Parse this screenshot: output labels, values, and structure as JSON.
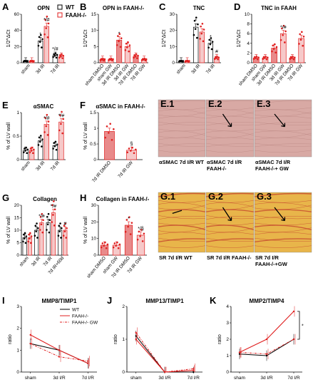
{
  "colors": {
    "wt": "#000000",
    "faah": "#e02020",
    "wt_bar": "#ffffff",
    "faah_bar": "#f6c9c9",
    "faah_bar_dark": "#e88a8a"
  },
  "legend": {
    "wt": "WT",
    "faah": "FAAH-/-"
  },
  "bars": [
    {
      "id": "A",
      "title": "OPN",
      "ylabel": "1/2^ΔCt",
      "ylim": [
        0,
        60
      ],
      "yticks": [
        0,
        20,
        40,
        60
      ],
      "categories": [
        "sham",
        "3d IR",
        "7d IR"
      ],
      "values": [
        2,
        27,
        9
      ],
      "values_faah": [
        2,
        45,
        8
      ],
      "sig": [
        "",
        "*",
        "*/#"
      ],
      "sig_faah": [
        "",
        "*/#",
        ""
      ]
    },
    {
      "id": "B",
      "title": "OPN in FAAH-/-",
      "ylabel": "1/2^ΔCt",
      "ylim": [
        0,
        15
      ],
      "yticks": [
        0,
        5,
        10,
        15
      ],
      "categories": [
        "sham DMSO",
        "sham GW",
        "3d IR DMSO",
        "3d IR GW",
        "7d IR DMSO",
        "7d IR GW"
      ],
      "values": [
        1,
        1,
        7,
        5,
        2,
        1
      ],
      "sig": [
        "",
        "",
        "*",
        "",
        "",
        ""
      ]
    },
    {
      "id": "C",
      "title": "TNC",
      "ylabel": "1/2^ΔCt",
      "ylim": [
        0,
        30
      ],
      "yticks": [
        0,
        10,
        20,
        30
      ],
      "categories": [
        "sham",
        "3d IR",
        "7d IR"
      ],
      "values": [
        1,
        22,
        12
      ],
      "values_faah": [
        1,
        19,
        3
      ],
      "sig": [
        "",
        "*",
        "*"
      ],
      "sig_faah": [
        "",
        "",
        "#"
      ]
    },
    {
      "id": "D",
      "title": "TNC in FAAH",
      "ylabel": "1/2^ΔCt",
      "ylim": [
        0,
        10
      ],
      "yticks": [
        0,
        2,
        4,
        6,
        8,
        10
      ],
      "categories": [
        "sham DMSO",
        "sham GW",
        "3d IR DMSO",
        "3d IR GW",
        "7d IR DMSO",
        "7d IR GW"
      ],
      "values": [
        1,
        1,
        3,
        6,
        1,
        5
      ],
      "sig": [
        "",
        "",
        "",
        "*/#",
        "",
        ""
      ]
    },
    {
      "id": "E",
      "title": "αSMAC",
      "ylabel": "% of LV wall",
      "ylim": [
        0,
        1
      ],
      "yticks": [
        0,
        0.5,
        1.0
      ],
      "categories": [
        "sham",
        "3d IR",
        "7d IR"
      ],
      "values": [
        0.2,
        0.4,
        0.3
      ],
      "values_faah": [
        0.2,
        0.75,
        0.8
      ],
      "sig": [
        "",
        "",
        ""
      ],
      "sig_faah": [
        "",
        "*/#",
        "*/#"
      ]
    },
    {
      "id": "F",
      "title": "αSMAC in FAAH-/-",
      "ylabel": "% of LV wall",
      "ylim": [
        0,
        1.5
      ],
      "yticks": [
        0,
        0.5,
        1.0,
        1.5
      ],
      "categories": [
        "7d IR DMSO",
        "7d IR GW"
      ],
      "values": [
        0.9,
        0.3
      ],
      "sig": [
        "",
        "§"
      ]
    },
    {
      "id": "G",
      "title": "Collagen",
      "ylabel": "% of LV wall",
      "ylim": [
        0,
        20
      ],
      "yticks": [
        0,
        5,
        10,
        15,
        20
      ],
      "categories": [
        "sham",
        "3d IR",
        "7d IR",
        "7d IR+60d"
      ],
      "values": [
        7,
        10,
        13,
        10
      ],
      "values_faah": [
        7,
        13,
        17,
        10
      ],
      "sig": [
        "",
        "",
        "",
        ""
      ],
      "sig_faah": [
        "",
        "*/#",
        "*/#",
        "#"
      ]
    },
    {
      "id": "H",
      "title": "Collagen in FAAH-/-",
      "ylabel": "% of LV wall",
      "ylim": [
        0,
        30
      ],
      "yticks": [
        0,
        10,
        20,
        30
      ],
      "categories": [
        "sham DMSO",
        "sham GW",
        "7d IR DMSO",
        "7d IR GW"
      ],
      "values": [
        6,
        6,
        18,
        12
      ],
      "sig": [
        "",
        "",
        "*",
        "*/§"
      ]
    }
  ],
  "images": [
    {
      "label": "E.1",
      "caption": [
        "αSMAC 7d I/R WT"
      ],
      "tone": "pink"
    },
    {
      "label": "E.2",
      "caption": [
        "αSMAC 7d I/R",
        "FAAH-/-"
      ],
      "tone": "pink"
    },
    {
      "label": "E.3",
      "caption": [
        "αSMAC 7d I/R",
        "FAAH-/-+ GW"
      ],
      "tone": "pink"
    },
    {
      "label": "G.1",
      "caption": [
        "SR 7d I/R WT"
      ],
      "tone": "yellow"
    },
    {
      "label": "G.2",
      "caption": [
        "SR 7d I/R FAAH-/-"
      ],
      "tone": "yellow"
    },
    {
      "label": "G.3",
      "caption": [
        "SR 7d I/R",
        "FAAH-/-+GW"
      ],
      "tone": "yellow"
    }
  ],
  "chart_data": [
    {
      "type": "line",
      "id": "I",
      "title": "MMP8/TIMP1",
      "ylabel": "ratio",
      "ylim": [
        0,
        3
      ],
      "yticks": [
        0,
        1,
        2,
        3
      ],
      "x": [
        "sham",
        "3d I/R",
        "7d I/R"
      ],
      "series": [
        {
          "name": "WT",
          "values": [
            1.3,
            1.0,
            0.4
          ]
        },
        {
          "name": "FAAH-/-",
          "values": [
            1.7,
            1.0,
            0.4
          ]
        },
        {
          "name": "FAAH-/- GW",
          "values": [
            1.3,
            0.7,
            0.5
          ]
        }
      ]
    },
    {
      "type": "line",
      "id": "J",
      "title": "MMP13/TIMP1",
      "ylabel": "ratio",
      "ylim": [
        0,
        2
      ],
      "yticks": [
        0,
        1,
        2
      ],
      "x": [
        "sham",
        "3d I/R",
        "7d I/R"
      ],
      "series": [
        {
          "name": "WT",
          "values": [
            1.1,
            0.0,
            0.0
          ]
        },
        {
          "name": "FAAH-/-",
          "values": [
            1.0,
            0.0,
            0.05
          ]
        },
        {
          "name": "FAAH-/- GW",
          "values": [
            1.2,
            0.0,
            0.1
          ]
        }
      ]
    },
    {
      "type": "line",
      "id": "K",
      "title": "MMP2/TIMP4",
      "ylabel": "ratio",
      "ylim": [
        0,
        4
      ],
      "yticks": [
        0,
        1,
        2,
        3,
        4
      ],
      "x": [
        "sham",
        "3d I/R",
        "7d I/R"
      ],
      "series": [
        {
          "name": "WT",
          "values": [
            1.1,
            1.0,
            2.0
          ]
        },
        {
          "name": "FAAH-/-",
          "values": [
            1.2,
            2.0,
            3.7
          ]
        },
        {
          "name": "FAAH-/- GW",
          "values": [
            1.2,
            1.1,
            2.0
          ]
        }
      ],
      "annotation": "*"
    }
  ]
}
